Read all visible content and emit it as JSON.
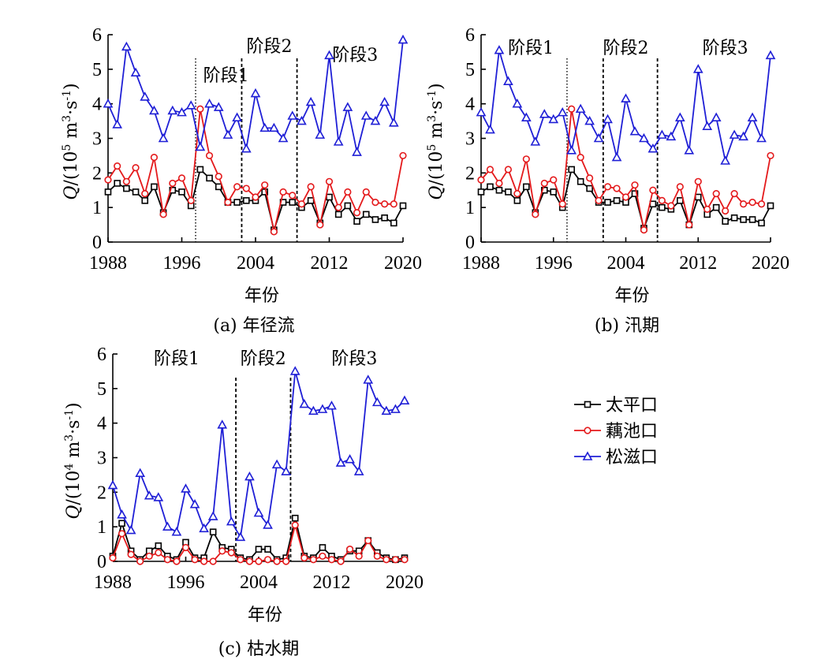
{
  "legend": {
    "items": [
      {
        "label": "太平口",
        "color": "#000000",
        "marker": "square"
      },
      {
        "label": "藕池口",
        "color": "#e41a1c",
        "marker": "circle"
      },
      {
        "label": "松滋口",
        "color": "#1f1fd6",
        "marker": "triangle"
      }
    ]
  },
  "chart_data": [
    {
      "type": "line",
      "caption": "(a) 年径流",
      "xlabel": "年份",
      "ylabel_prefix": "Q/(10",
      "ylabel_exp": "5",
      "ylabel_unit": " m",
      "ylabel_exp2": "3",
      "ylabel_mid": "·s",
      "ylabel_exp3": "-1",
      "ylabel_close": ")",
      "xlim": [
        1988,
        2020
      ],
      "ylim": [
        0,
        6
      ],
      "xticks": [
        1988,
        1996,
        2004,
        2012,
        2020
      ],
      "yticks": [
        0,
        1,
        2,
        3,
        4,
        5,
        6
      ],
      "stage_lines": [
        {
          "x": 1997.5,
          "style": "dotted"
        },
        {
          "x": 2002.5,
          "style": "dashed"
        },
        {
          "x": 2008.5,
          "style": "dashed"
        }
      ],
      "stage_labels": [
        {
          "text": "阶段1",
          "x": 2000.8,
          "y": 4.65
        },
        {
          "text": "阶段2",
          "x": 2005.5,
          "y": 5.5
        },
        {
          "text": "阶段3",
          "x": 2014.8,
          "y": 5.25
        }
      ],
      "x": [
        1988,
        1989,
        1990,
        1991,
        1992,
        1993,
        1994,
        1995,
        1996,
        1997,
        1998,
        1999,
        2000,
        2001,
        2002,
        2003,
        2004,
        2005,
        2006,
        2007,
        2008,
        2009,
        2010,
        2011,
        2012,
        2013,
        2014,
        2015,
        2016,
        2017,
        2018,
        2019,
        2020
      ],
      "series": [
        {
          "name": "太平口",
          "values": [
            1.45,
            1.7,
            1.55,
            1.45,
            1.2,
            1.6,
            0.85,
            1.5,
            1.45,
            1.05,
            2.1,
            1.85,
            1.6,
            1.15,
            1.15,
            1.2,
            1.2,
            1.45,
            0.35,
            1.15,
            1.15,
            1.0,
            1.2,
            0.55,
            1.3,
            0.8,
            1.05,
            0.6,
            0.8,
            0.65,
            0.7,
            0.55,
            1.05
          ]
        },
        {
          "name": "藕池口",
          "values": [
            1.8,
            2.2,
            1.75,
            2.15,
            1.4,
            2.45,
            0.8,
            1.7,
            1.85,
            1.2,
            3.85,
            2.5,
            1.9,
            1.15,
            1.6,
            1.55,
            1.3,
            1.65,
            0.3,
            1.45,
            1.35,
            1.1,
            1.6,
            0.5,
            1.75,
            1.0,
            1.45,
            0.85,
            1.45,
            1.15,
            1.1,
            1.1,
            2.5
          ]
        },
        {
          "name": "松滋口",
          "values": [
            4.0,
            3.4,
            5.65,
            4.9,
            4.2,
            3.8,
            3.0,
            3.8,
            3.75,
            3.95,
            2.75,
            4.0,
            3.9,
            3.1,
            3.6,
            2.7,
            4.3,
            3.3,
            3.3,
            3.0,
            3.65,
            3.5,
            4.05,
            3.1,
            5.4,
            2.9,
            3.9,
            2.6,
            3.65,
            3.5,
            4.05,
            3.45,
            5.85
          ]
        }
      ]
    },
    {
      "type": "line",
      "caption": "(b) 汛期",
      "xlabel": "年份",
      "ylabel_prefix": "Q/(10",
      "ylabel_exp": "5",
      "ylabel_unit": " m",
      "ylabel_exp2": "3",
      "ylabel_mid": "·s",
      "ylabel_exp3": "-1",
      "ylabel_close": ")",
      "xlim": [
        1988,
        2020
      ],
      "ylim": [
        0,
        6
      ],
      "xticks": [
        1988,
        1996,
        2004,
        2012,
        2020
      ],
      "yticks": [
        0,
        1,
        2,
        3,
        4,
        5,
        6
      ],
      "stage_lines": [
        {
          "x": 1997.5,
          "style": "dotted"
        },
        {
          "x": 2001.5,
          "style": "dashed"
        },
        {
          "x": 2007.5,
          "style": "dashed"
        }
      ],
      "stage_labels": [
        {
          "text": "阶段1",
          "x": 1993.5,
          "y": 5.45
        },
        {
          "text": "阶段2",
          "x": 2004.0,
          "y": 5.45
        },
        {
          "text": "阶段3",
          "x": 2015.0,
          "y": 5.45
        }
      ],
      "x": [
        1988,
        1989,
        1990,
        1991,
        1992,
        1993,
        1994,
        1995,
        1996,
        1997,
        1998,
        1999,
        2000,
        2001,
        2002,
        2003,
        2004,
        2005,
        2006,
        2007,
        2008,
        2009,
        2010,
        2011,
        2012,
        2013,
        2014,
        2015,
        2016,
        2017,
        2018,
        2019,
        2020
      ],
      "series": [
        {
          "name": "太平口",
          "values": [
            1.45,
            1.6,
            1.5,
            1.45,
            1.2,
            1.6,
            0.85,
            1.5,
            1.45,
            1.0,
            2.1,
            1.75,
            1.55,
            1.15,
            1.15,
            1.2,
            1.15,
            1.4,
            0.4,
            1.1,
            1.0,
            0.95,
            1.2,
            0.5,
            1.3,
            0.8,
            1.0,
            0.6,
            0.7,
            0.65,
            0.65,
            0.55,
            1.05
          ]
        },
        {
          "name": "藕池口",
          "values": [
            1.8,
            2.1,
            1.7,
            2.1,
            1.4,
            2.4,
            0.8,
            1.7,
            1.8,
            1.1,
            3.85,
            2.45,
            1.85,
            1.2,
            1.6,
            1.55,
            1.3,
            1.65,
            0.35,
            1.5,
            1.2,
            1.05,
            1.6,
            0.5,
            1.75,
            0.95,
            1.4,
            0.9,
            1.4,
            1.1,
            1.15,
            1.1,
            2.5
          ]
        },
        {
          "name": "松滋口",
          "values": [
            3.75,
            3.25,
            5.55,
            4.65,
            4.0,
            3.6,
            2.9,
            3.7,
            3.55,
            3.75,
            2.65,
            3.85,
            3.5,
            3.0,
            3.55,
            2.45,
            4.15,
            3.2,
            3.0,
            2.7,
            3.1,
            3.05,
            3.6,
            2.65,
            5.0,
            3.35,
            3.6,
            2.35,
            3.1,
            3.05,
            3.6,
            3.0,
            5.4
          ]
        }
      ]
    },
    {
      "type": "line",
      "caption": "(c) 枯水期",
      "xlabel": "年份",
      "ylabel_prefix": "Q/(10",
      "ylabel_exp": "4",
      "ylabel_unit": " m",
      "ylabel_exp2": "3",
      "ylabel_mid": "·s",
      "ylabel_exp3": "-1",
      "ylabel_close": ")",
      "xlim": [
        1988,
        2020
      ],
      "ylim": [
        0,
        6
      ],
      "xticks": [
        1988,
        1996,
        2004,
        2012,
        2020
      ],
      "yticks": [
        0,
        1,
        2,
        3,
        4,
        5,
        6
      ],
      "stage_lines": [
        {
          "x": 2001.5,
          "style": "dashed"
        },
        {
          "x": 2007.5,
          "style": "dashed"
        }
      ],
      "stage_labels": [
        {
          "text": "阶段1",
          "x": 1995.0,
          "y": 5.7
        },
        {
          "text": "阶段2",
          "x": 2004.5,
          "y": 5.7
        },
        {
          "text": "阶段3",
          "x": 2014.5,
          "y": 5.7
        }
      ],
      "x": [
        1988,
        1989,
        1990,
        1991,
        1992,
        1993,
        1994,
        1995,
        1996,
        1997,
        1998,
        1999,
        2000,
        2001,
        2002,
        2003,
        2004,
        2005,
        2006,
        2007,
        2008,
        2009,
        2010,
        2011,
        2012,
        2013,
        2014,
        2015,
        2016,
        2017,
        2018,
        2019,
        2020
      ],
      "series": [
        {
          "name": "太平口",
          "values": [
            0.15,
            1.1,
            0.3,
            0.05,
            0.3,
            0.45,
            0.15,
            0.05,
            0.55,
            0.1,
            0.1,
            0.85,
            0.4,
            0.35,
            0.1,
            0.05,
            0.35,
            0.35,
            0.05,
            0.1,
            1.25,
            0.15,
            0.1,
            0.4,
            0.15,
            0.05,
            0.3,
            0.3,
            0.6,
            0.25,
            0.1,
            0.05,
            0.1
          ]
        },
        {
          "name": "藕池口",
          "values": [
            0.1,
            0.8,
            0.2,
            0.0,
            0.15,
            0.25,
            0.05,
            0.0,
            0.4,
            0.05,
            0.0,
            0.0,
            0.3,
            0.25,
            0.05,
            0.0,
            0.0,
            0.05,
            0.0,
            0.0,
            1.05,
            0.1,
            0.05,
            0.15,
            0.05,
            0.0,
            0.35,
            0.15,
            0.6,
            0.15,
            0.05,
            0.05,
            0.05
          ]
        },
        {
          "name": "松滋口",
          "values": [
            2.2,
            1.35,
            0.9,
            2.55,
            1.9,
            1.85,
            1.0,
            0.85,
            2.1,
            1.65,
            0.95,
            1.3,
            3.95,
            1.15,
            0.7,
            2.45,
            1.4,
            1.05,
            2.8,
            2.6,
            5.5,
            4.55,
            4.35,
            4.4,
            4.5,
            2.85,
            2.95,
            2.6,
            5.25,
            4.6,
            4.35,
            4.4,
            4.65
          ]
        }
      ]
    }
  ]
}
